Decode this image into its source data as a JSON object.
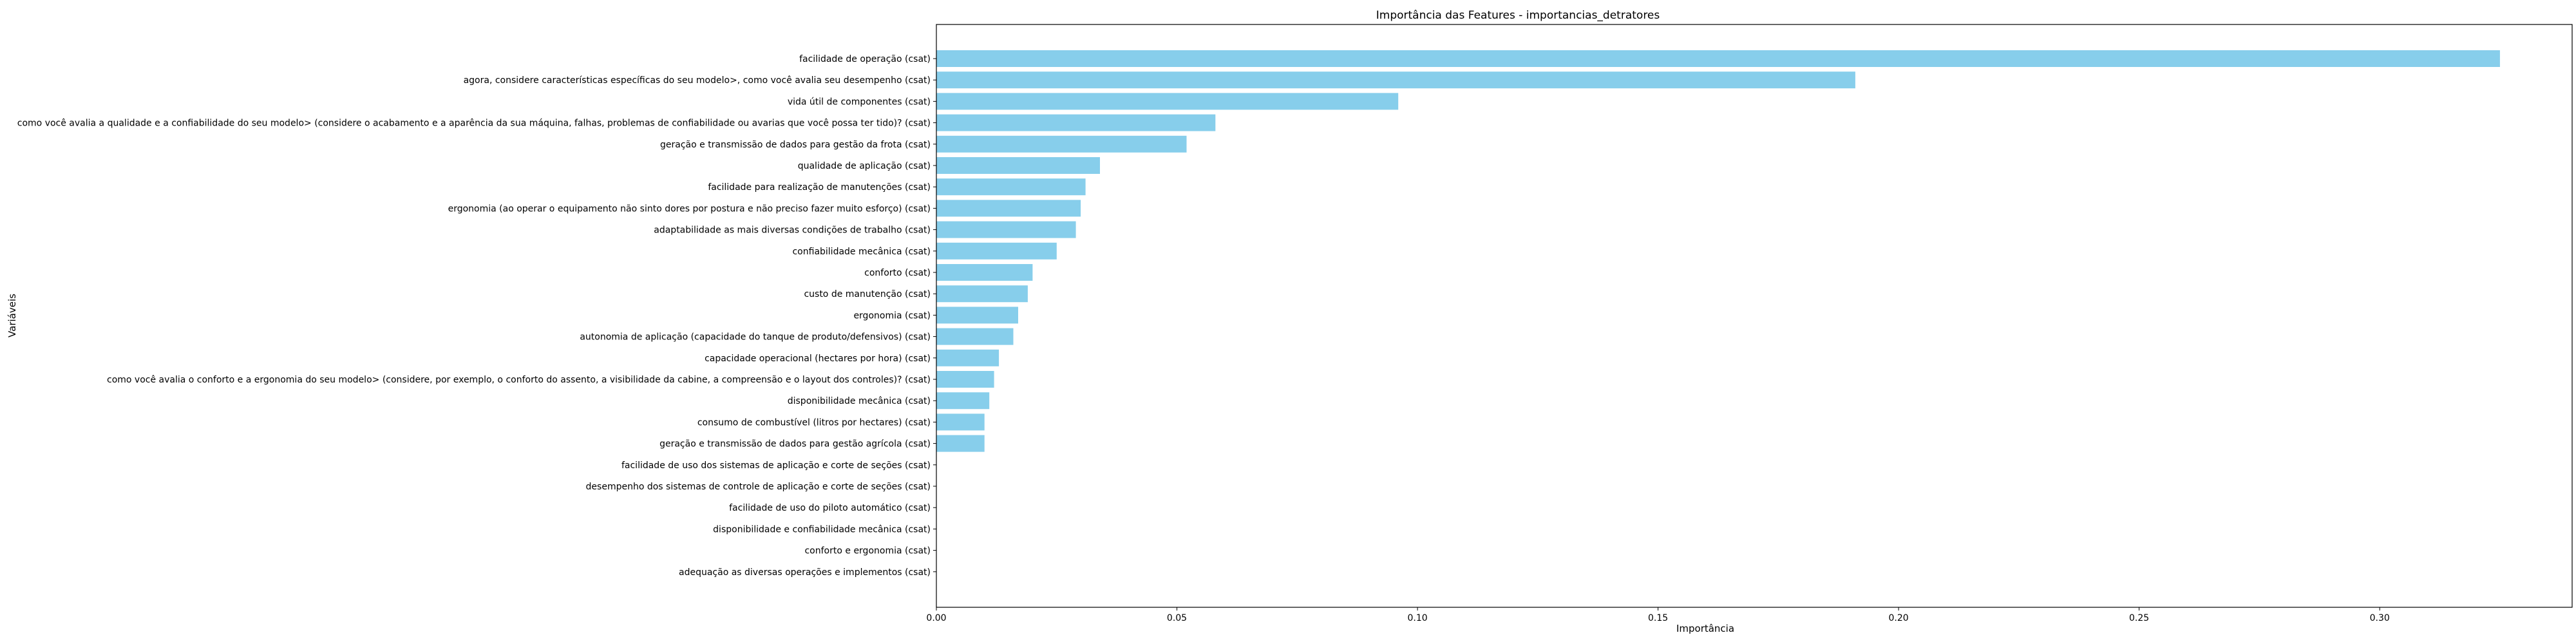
{
  "chart_data": {
    "type": "bar",
    "orientation": "horizontal",
    "title": "Importância das Features - importancias_detratores",
    "xlabel": "Importância",
    "ylabel": "Variáveis",
    "xlim": [
      0,
      0.34
    ],
    "x_ticks": [
      "0.00",
      "0.05",
      "0.10",
      "0.15",
      "0.20",
      "0.25",
      "0.30"
    ],
    "grid": false,
    "bar_color": "#87ceeb",
    "categories": [
      "facilidade de operação (csat)",
      "agora, considere características específicas do seu modelo>, como você avalia seu desempenho (csat)",
      "vida útil de componentes (csat)",
      "como você avalia a qualidade e a confiabilidade do seu modelo> (considere o acabamento e a aparência da sua máquina, falhas, problemas de confiabilidade ou avarias que você possa ter tido)? (csat)",
      "geração e transmissão de dados para gestão da frota (csat)",
      "qualidade de aplicação (csat)",
      "facilidade para realização de manutenções (csat)",
      "ergonomia (ao operar o equipamento não sinto dores por postura e não preciso fazer muito esforço) (csat)",
      "adaptabilidade as mais diversas condições de trabalho (csat)",
      "confiabilidade mecânica (csat)",
      "conforto (csat)",
      "custo de manutenção (csat)",
      "ergonomia (csat)",
      "autonomia de aplicação (capacidade do tanque de produto/defensivos) (csat)",
      "capacidade operacional (hectares por hora) (csat)",
      "como você avalia o conforto e a ergonomia do seu modelo>  (considere, por exemplo, o conforto do assento, a visibilidade da cabine, a compreensão e o layout dos controles)? (csat)",
      "disponibilidade mecânica (csat)",
      "consumo de combustível (litros por hectares) (csat)",
      "geração e transmissão de dados para gestão agrícola (csat)",
      "facilidade de uso dos sistemas de aplicação e corte de seções (csat)",
      "desempenho dos sistemas de controle de aplicação e corte de seções (csat)",
      "facilidade de uso do piloto automático (csat)",
      "disponibilidade e confiabilidade mecânica  (csat)",
      "conforto e ergonomia (csat)",
      "adequação as diversas operações e implementos (csat)"
    ],
    "values": [
      0.325,
      0.191,
      0.096,
      0.058,
      0.052,
      0.034,
      0.031,
      0.03,
      0.029,
      0.025,
      0.02,
      0.019,
      0.017,
      0.016,
      0.013,
      0.012,
      0.011,
      0.01,
      0.01,
      0.0,
      0.0,
      0.0,
      0.0,
      0.0,
      0.0
    ]
  }
}
